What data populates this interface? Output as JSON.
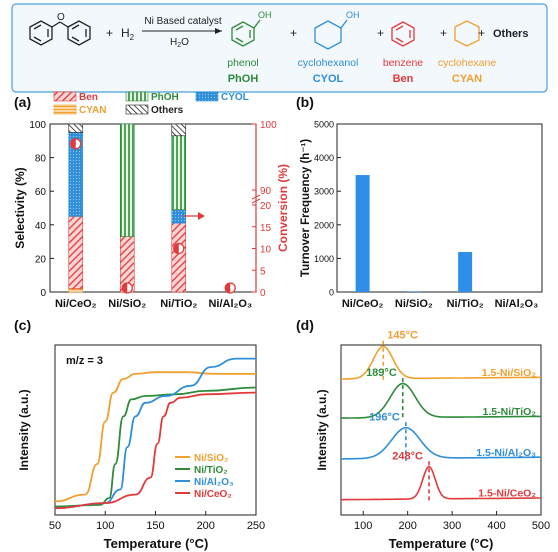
{
  "scheme": {
    "reactant_plus": "+",
    "h2": "H",
    "h2_sub": "2",
    "catalyst": "Ni Based catalyst",
    "solvent": "H",
    "solvent_sub": "2",
    "solvent_tail": "O",
    "plus": "+",
    "others": "Others",
    "oh": "OH",
    "products": [
      {
        "name": "phenol",
        "abbr": "PhOH",
        "color": "#2e8b3a"
      },
      {
        "name": "cyclohexanol",
        "abbr": "CYOL",
        "color": "#2f8fd8"
      },
      {
        "name": "benzene",
        "abbr": "Ben",
        "color": "#e23a3a"
      },
      {
        "name": "cyclohexane",
        "abbr": "CYAN",
        "color": "#f0a030"
      }
    ]
  },
  "chart_data": [
    {
      "panel": "(a)",
      "type": "bar",
      "stacked": true,
      "categories": [
        "Ni/CeO₂",
        "Ni/SiO₂",
        "Ni/TiO₂",
        "Ni/Al₂O₃"
      ],
      "ylabel": "Selectivity (%)",
      "y2label": "Conversion (%)",
      "ylim": [
        0,
        100
      ],
      "yticks": [
        "0",
        "20",
        "40",
        "60",
        "80",
        "100"
      ],
      "y2ticks": [
        "0",
        "5",
        "10",
        "15",
        "20",
        "90",
        "100"
      ],
      "legend": [
        "Ben",
        "PhOH",
        "CYOL",
        "CYAN",
        "Others"
      ],
      "series": [
        {
          "name": "CYAN",
          "color": "#f0a030",
          "values": [
            2,
            0,
            0,
            0
          ]
        },
        {
          "name": "Ben",
          "color": "#e23a3a",
          "values": [
            43,
            33,
            41,
            0
          ]
        },
        {
          "name": "CYOL",
          "color": "#2f8fd8",
          "values": [
            50,
            0,
            8,
            0
          ]
        },
        {
          "name": "PhOH",
          "color": "#2e8b3a",
          "values": [
            0,
            67,
            44,
            0
          ]
        },
        {
          "name": "Others",
          "color": "#222222",
          "values": [
            5,
            0,
            7,
            0
          ]
        }
      ],
      "conversion": [
        97,
        0.8,
        10,
        0.3
      ]
    },
    {
      "panel": "(b)",
      "type": "bar",
      "categories": [
        "Ni/CeO₂",
        "Ni/SiO₂",
        "Ni/TiO₂",
        "Ni/Al₂O₃"
      ],
      "ylabel": "Turnover Frequency (h⁻¹)",
      "ylim": [
        0,
        5000
      ],
      "yticks": [
        "0",
        "1000",
        "2000",
        "3000",
        "4000",
        "5000"
      ],
      "values": [
        3480,
        20,
        1190,
        0
      ],
      "color": "#2f8fe8"
    },
    {
      "panel": "(c)",
      "type": "line",
      "annotation": "m/z = 3",
      "xlabel": "Temperature (°C)",
      "ylabel": "Intensity (a.u.)",
      "xlim": [
        50,
        250
      ],
      "xticks": [
        "50",
        "100",
        "150",
        "200",
        "250"
      ],
      "series": [
        {
          "name": "Ni/SiO₂",
          "color": "#f0a030",
          "x": [
            50,
            80,
            92,
            100,
            108,
            118,
            130,
            150,
            180,
            210,
            250
          ],
          "y": [
            0.08,
            0.12,
            0.3,
            0.55,
            0.72,
            0.8,
            0.83,
            0.84,
            0.84,
            0.83,
            0.83
          ]
        },
        {
          "name": "Ni/TiO₂",
          "color": "#2e8b3a",
          "x": [
            50,
            95,
            104,
            110,
            118,
            126,
            140,
            170,
            200,
            250
          ],
          "y": [
            0.05,
            0.06,
            0.1,
            0.3,
            0.58,
            0.68,
            0.7,
            0.71,
            0.73,
            0.75
          ]
        },
        {
          "name": "Ni/Al₂O₃",
          "color": "#2f8fd8",
          "x": [
            50,
            100,
            115,
            122,
            130,
            140,
            160,
            185,
            205,
            230,
            250
          ],
          "y": [
            0.04,
            0.07,
            0.15,
            0.4,
            0.58,
            0.66,
            0.7,
            0.76,
            0.87,
            0.92,
            0.92
          ]
        },
        {
          "name": "Ni/CeO₂",
          "color": "#e23a3a",
          "x": [
            50,
            100,
            130,
            145,
            152,
            158,
            165,
            175,
            200,
            250
          ],
          "y": [
            0.04,
            0.07,
            0.12,
            0.22,
            0.42,
            0.58,
            0.66,
            0.69,
            0.71,
            0.72
          ]
        }
      ]
    },
    {
      "panel": "(d)",
      "type": "line",
      "xlabel": "Temperature (°C)",
      "ylabel": "Intensity (a.u.)",
      "xlim": [
        50,
        500
      ],
      "xticks": [
        "100",
        "200",
        "300",
        "400",
        "500"
      ],
      "series": [
        {
          "name": "1.5-Ni/SiO₂",
          "color": "#f0a030",
          "peak": 145,
          "peak_label": "145°C",
          "baseline": 0.8,
          "height": 0.19,
          "width": 22
        },
        {
          "name": "1.5-Ni/TiO₂",
          "color": "#2e8b3a",
          "peak": 189,
          "peak_label": "189°C",
          "baseline": 0.57,
          "height": 0.2,
          "width": 28
        },
        {
          "name": "1.5-Ni/Al₂O₃",
          "color": "#2f8fd8",
          "peak": 196,
          "peak_label": "196°C",
          "baseline": 0.33,
          "height": 0.18,
          "width": 32
        },
        {
          "name": "1.5-Ni/CeO₂",
          "color": "#e23a3a",
          "peak": 248,
          "peak_label": "248°C",
          "baseline": 0.09,
          "height": 0.19,
          "width": 14
        }
      ]
    }
  ]
}
